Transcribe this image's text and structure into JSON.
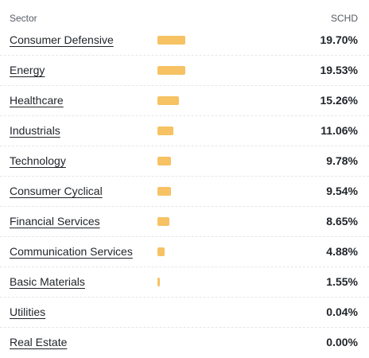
{
  "header": {
    "sector_label": "Sector",
    "fund_label": "SCHD"
  },
  "rows": [
    {
      "sector": "Consumer Defensive",
      "value": "19.70%",
      "pct": 19.7
    },
    {
      "sector": "Energy",
      "value": "19.53%",
      "pct": 19.53
    },
    {
      "sector": "Healthcare",
      "value": "15.26%",
      "pct": 15.26
    },
    {
      "sector": "Industrials",
      "value": "11.06%",
      "pct": 11.06
    },
    {
      "sector": "Technology",
      "value": "9.78%",
      "pct": 9.78
    },
    {
      "sector": "Consumer Cyclical",
      "value": "9.54%",
      "pct": 9.54
    },
    {
      "sector": "Financial Services",
      "value": "8.65%",
      "pct": 8.65
    },
    {
      "sector": "Communication Services",
      "value": "4.88%",
      "pct": 4.88
    },
    {
      "sector": "Basic Materials",
      "value": "1.55%",
      "pct": 1.55
    },
    {
      "sector": "Utilities",
      "value": "0.04%",
      "pct": 0.04
    },
    {
      "sector": "Real Estate",
      "value": "0.00%",
      "pct": 0.0
    }
  ],
  "colors": {
    "bar": "#f6c263",
    "text": "#1f2328",
    "muted": "#555c63"
  }
}
